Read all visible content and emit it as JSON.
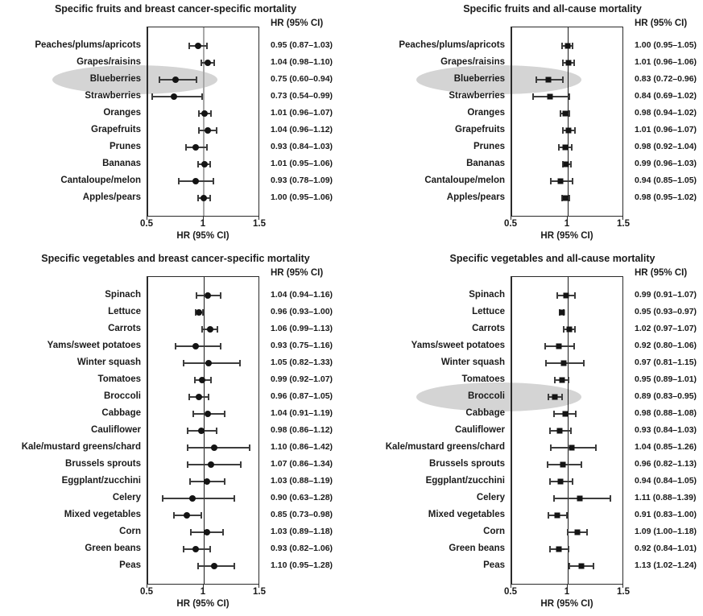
{
  "figure": {
    "background": "#ffffff",
    "text_color": "#1a1a1a"
  },
  "colors": {
    "marker": "#141414",
    "ci_bar": "#3d3d3d",
    "highlight_ellipse": "#d4d4d4",
    "ref_line_gray": "#a8a8a8",
    "ref_line_black": "#1c1c1c",
    "box_border": "#2a2a2a"
  },
  "chart_data": [
    {
      "type": "forest",
      "title": "Specific fruits and breast cancer-specific mortality",
      "col_header": "HR (95% CI)",
      "xlabel": "HR (95% CI)",
      "xlim": [
        0.5,
        1.5
      ],
      "xticks": [
        "0.5",
        "1",
        "1.5"
      ],
      "ref_line": 1,
      "marker": "circle",
      "ref_line_style": "gray",
      "items": [
        {
          "label": "Peaches/plums/apricots",
          "hr": 0.95,
          "lo": 0.87,
          "hi": 1.03,
          "text": "0.95 (0.87–1.03)",
          "highlight": false
        },
        {
          "label": "Grapes/raisins",
          "hr": 1.04,
          "lo": 0.98,
          "hi": 1.1,
          "text": "1.04 (0.98–1.10)",
          "highlight": false
        },
        {
          "label": "Blueberries",
          "hr": 0.75,
          "lo": 0.6,
          "hi": 0.94,
          "text": "0.75 (0.60–0.94)",
          "highlight": true
        },
        {
          "label": "Strawberries",
          "hr": 0.73,
          "lo": 0.54,
          "hi": 0.99,
          "text": "0.73 (0.54–0.99)",
          "highlight": false
        },
        {
          "label": "Oranges",
          "hr": 1.01,
          "lo": 0.96,
          "hi": 1.07,
          "text": "1.01 (0.96–1.07)",
          "highlight": false
        },
        {
          "label": "Grapefruits",
          "hr": 1.04,
          "lo": 0.96,
          "hi": 1.12,
          "text": "1.04 (0.96–1.12)",
          "highlight": false
        },
        {
          "label": "Prunes",
          "hr": 0.93,
          "lo": 0.84,
          "hi": 1.03,
          "text": "0.93 (0.84–1.03)",
          "highlight": false
        },
        {
          "label": "Bananas",
          "hr": 1.01,
          "lo": 0.95,
          "hi": 1.06,
          "text": "1.01 (0.95–1.06)",
          "highlight": false
        },
        {
          "label": "Cantaloupe/melon",
          "hr": 0.93,
          "lo": 0.78,
          "hi": 1.09,
          "text": "0.93 (0.78–1.09)",
          "highlight": false
        },
        {
          "label": "Apples/pears",
          "hr": 1.0,
          "lo": 0.95,
          "hi": 1.06,
          "text": "1.00 (0.95–1.06)",
          "highlight": false
        }
      ]
    },
    {
      "type": "forest",
      "title": "Specific fruits and all-cause mortality",
      "col_header": "HR (95% CI)",
      "xlabel": "HR (95% CI)",
      "xlim": [
        0.5,
        1.5
      ],
      "xticks": [
        "0.5",
        "1",
        "1.5"
      ],
      "ref_line": 1,
      "marker": "square",
      "ref_line_style": "black",
      "items": [
        {
          "label": "Peaches/plums/apricots",
          "hr": 1.0,
          "lo": 0.95,
          "hi": 1.05,
          "text": "1.00 (0.95–1.05)",
          "highlight": false
        },
        {
          "label": "Grapes/raisins",
          "hr": 1.01,
          "lo": 0.96,
          "hi": 1.06,
          "text": "1.01 (0.96–1.06)",
          "highlight": false
        },
        {
          "label": "Blueberries",
          "hr": 0.83,
          "lo": 0.72,
          "hi": 0.96,
          "text": "0.83 (0.72–0.96)",
          "highlight": true
        },
        {
          "label": "Strawberries",
          "hr": 0.84,
          "lo": 0.69,
          "hi": 1.02,
          "text": "0.84 (0.69–1.02)",
          "highlight": false
        },
        {
          "label": "Oranges",
          "hr": 0.98,
          "lo": 0.94,
          "hi": 1.02,
          "text": "0.98 (0.94–1.02)",
          "highlight": false
        },
        {
          "label": "Grapefruits",
          "hr": 1.01,
          "lo": 0.96,
          "hi": 1.07,
          "text": "1.01 (0.96–1.07)",
          "highlight": false
        },
        {
          "label": "Prunes",
          "hr": 0.98,
          "lo": 0.92,
          "hi": 1.04,
          "text": "0.98 (0.92–1.04)",
          "highlight": false
        },
        {
          "label": "Bananas",
          "hr": 0.99,
          "lo": 0.96,
          "hi": 1.03,
          "text": "0.99 (0.96–1.03)",
          "highlight": false
        },
        {
          "label": "Cantaloupe/melon",
          "hr": 0.94,
          "lo": 0.85,
          "hi": 1.05,
          "text": "0.94 (0.85–1.05)",
          "highlight": false
        },
        {
          "label": "Apples/pears",
          "hr": 0.98,
          "lo": 0.95,
          "hi": 1.02,
          "text": "0.98 (0.95–1.02)",
          "highlight": false
        }
      ]
    },
    {
      "type": "forest",
      "title": "Specific vegetables and breast cancer-specific mortality",
      "col_header": "HR (95% CI)",
      "xlabel": "HR (95% CI)",
      "xlim": [
        0.5,
        1.5
      ],
      "xticks": [
        "0.5",
        "1",
        "1.5"
      ],
      "ref_line": 1,
      "marker": "circle",
      "ref_line_style": "black",
      "items": [
        {
          "label": "Spinach",
          "hr": 1.04,
          "lo": 0.94,
          "hi": 1.16,
          "text": "1.04 (0.94–1.16)",
          "highlight": false
        },
        {
          "label": "Lettuce",
          "hr": 0.96,
          "lo": 0.93,
          "hi": 1.0,
          "text": "0.96 (0.93–1.00)",
          "highlight": false
        },
        {
          "label": "Carrots",
          "hr": 1.06,
          "lo": 0.99,
          "hi": 1.13,
          "text": "1.06 (0.99–1.13)",
          "highlight": false
        },
        {
          "label": "Yams/sweet potatoes",
          "hr": 0.93,
          "lo": 0.75,
          "hi": 1.16,
          "text": "0.93 (0.75–1.16)",
          "highlight": false
        },
        {
          "label": "Winter squash",
          "hr": 1.05,
          "lo": 0.82,
          "hi": 1.33,
          "text": "1.05 (0.82–1.33)",
          "highlight": false
        },
        {
          "label": "Tomatoes",
          "hr": 0.99,
          "lo": 0.92,
          "hi": 1.07,
          "text": "0.99 (0.92–1.07)",
          "highlight": false
        },
        {
          "label": "Broccoli",
          "hr": 0.96,
          "lo": 0.87,
          "hi": 1.05,
          "text": "0.96 (0.87–1.05)",
          "highlight": false
        },
        {
          "label": "Cabbage",
          "hr": 1.04,
          "lo": 0.91,
          "hi": 1.19,
          "text": "1.04 (0.91–1.19)",
          "highlight": false
        },
        {
          "label": "Cauliflower",
          "hr": 0.98,
          "lo": 0.86,
          "hi": 1.12,
          "text": "0.98 (0.86–1.12)",
          "highlight": false
        },
        {
          "label": "Kale/mustard greens/chard",
          "hr": 1.1,
          "lo": 0.86,
          "hi": 1.42,
          "text": "1.10 (0.86–1.42)",
          "highlight": false
        },
        {
          "label": "Brussels sprouts",
          "hr": 1.07,
          "lo": 0.86,
          "hi": 1.34,
          "text": "1.07 (0.86–1.34)",
          "highlight": false
        },
        {
          "label": "Eggplant/zucchini",
          "hr": 1.03,
          "lo": 0.88,
          "hi": 1.19,
          "text": "1.03 (0.88–1.19)",
          "highlight": false
        },
        {
          "label": "Celery",
          "hr": 0.9,
          "lo": 0.63,
          "hi": 1.28,
          "text": "0.90 (0.63–1.28)",
          "highlight": false
        },
        {
          "label": "Mixed vegetables",
          "hr": 0.85,
          "lo": 0.73,
          "hi": 0.98,
          "text": "0.85 (0.73–0.98)",
          "highlight": false
        },
        {
          "label": "Corn",
          "hr": 1.03,
          "lo": 0.89,
          "hi": 1.18,
          "text": "1.03 (0.89–1.18)",
          "highlight": false
        },
        {
          "label": "Green beans",
          "hr": 0.93,
          "lo": 0.82,
          "hi": 1.06,
          "text": "0.93 (0.82–1.06)",
          "highlight": false
        },
        {
          "label": "Peas",
          "hr": 1.1,
          "lo": 0.95,
          "hi": 1.28,
          "text": "1.10 (0.95–1.28)",
          "highlight": false
        }
      ]
    },
    {
      "type": "forest",
      "title": "Specific vegetables and all-cause mortality",
      "col_header": "HR (95% CI)",
      "xlabel": "HR (95% CI)",
      "xlim": [
        0.5,
        1.5
      ],
      "xticks": [
        "0.5",
        "1",
        "1.5"
      ],
      "ref_line": 1,
      "marker": "square",
      "ref_line_style": "black",
      "items": [
        {
          "label": "Spinach",
          "hr": 0.99,
          "lo": 0.91,
          "hi": 1.07,
          "text": "0.99 (0.91–1.07)",
          "highlight": false
        },
        {
          "label": "Lettuce",
          "hr": 0.95,
          "lo": 0.93,
          "hi": 0.97,
          "text": "0.95 (0.93–0.97)",
          "highlight": false
        },
        {
          "label": "Carrots",
          "hr": 1.02,
          "lo": 0.97,
          "hi": 1.07,
          "text": "1.02 (0.97–1.07)",
          "highlight": false
        },
        {
          "label": "Yams/sweet potatoes",
          "hr": 0.92,
          "lo": 0.8,
          "hi": 1.06,
          "text": "0.92 (0.80–1.06)",
          "highlight": false
        },
        {
          "label": "Winter squash",
          "hr": 0.97,
          "lo": 0.81,
          "hi": 1.15,
          "text": "0.97 (0.81–1.15)",
          "highlight": false
        },
        {
          "label": "Tomatoes",
          "hr": 0.95,
          "lo": 0.89,
          "hi": 1.01,
          "text": "0.95 (0.89–1.01)",
          "highlight": false
        },
        {
          "label": "Broccoli",
          "hr": 0.89,
          "lo": 0.83,
          "hi": 0.95,
          "text": "0.89 (0.83–0.95)",
          "highlight": true
        },
        {
          "label": "Cabbage",
          "hr": 0.98,
          "lo": 0.88,
          "hi": 1.08,
          "text": "0.98 (0.88–1.08)",
          "highlight": false
        },
        {
          "label": "Cauliflower",
          "hr": 0.93,
          "lo": 0.84,
          "hi": 1.03,
          "text": "0.93 (0.84–1.03)",
          "highlight": false
        },
        {
          "label": "Kale/mustard greens/chard",
          "hr": 1.04,
          "lo": 0.85,
          "hi": 1.26,
          "text": "1.04 (0.85–1.26)",
          "highlight": false
        },
        {
          "label": "Brussels sprouts",
          "hr": 0.96,
          "lo": 0.82,
          "hi": 1.13,
          "text": "0.96 (0.82–1.13)",
          "highlight": false
        },
        {
          "label": "Eggplant/zucchini",
          "hr": 0.94,
          "lo": 0.84,
          "hi": 1.05,
          "text": "0.94 (0.84–1.05)",
          "highlight": false
        },
        {
          "label": "Celery",
          "hr": 1.11,
          "lo": 0.88,
          "hi": 1.39,
          "text": "1.11 (0.88–1.39)",
          "highlight": false
        },
        {
          "label": "Mixed vegetables",
          "hr": 0.91,
          "lo": 0.83,
          "hi": 1.0,
          "text": "0.91 (0.83–1.00)",
          "highlight": false
        },
        {
          "label": "Corn",
          "hr": 1.09,
          "lo": 1.0,
          "hi": 1.18,
          "text": "1.09 (1.00–1.18)",
          "highlight": false
        },
        {
          "label": "Green beans",
          "hr": 0.92,
          "lo": 0.84,
          "hi": 1.01,
          "text": "0.92 (0.84–1.01)",
          "highlight": false
        },
        {
          "label": "Peas",
          "hr": 1.13,
          "lo": 1.02,
          "hi": 1.24,
          "text": "1.13 (1.02–1.24)",
          "highlight": false
        }
      ]
    }
  ]
}
